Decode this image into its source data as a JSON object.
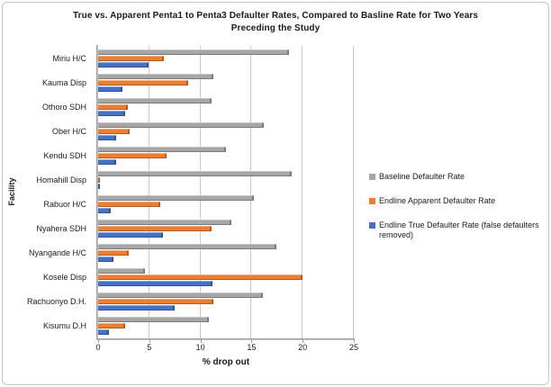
{
  "chart_data": {
    "type": "bar",
    "orientation": "horizontal",
    "title": "True vs. Apparent Penta1 to Penta3 Defaulter Rates, Compared to Basline Rate for Two Years Preceding the Study",
    "title_lines": [
      "True vs. Apparent Penta1 to Penta3 Defaulter Rates, Compared  to Basline  Rate for Two  Years",
      "Preceding  the Study"
    ],
    "categories": [
      "Miriu H/C",
      "Kauma Disp",
      "Othoro SDH",
      "Ober H/C",
      "Kendu SDH",
      "Homahill Disp",
      "Rabuor H/C",
      "Nyahera SDH",
      "Nyangande H/C",
      "Kosele Disp",
      "Rachuonyo D.H.",
      "Kisumu D.H"
    ],
    "series": [
      {
        "name": "Baseline Defaulter Rate",
        "color": "#a6a6a6",
        "values": [
          18.7,
          11.3,
          11.1,
          16.2,
          12.5,
          18.9,
          15.2,
          13.0,
          17.4,
          4.6,
          16.1,
          10.8
        ]
      },
      {
        "name": "Endline Apparent Defaulter Rate",
        "color": "#ed7d31",
        "values": [
          6.4,
          8.8,
          2.9,
          3.1,
          6.7,
          0.2,
          6.1,
          11.1,
          3.0,
          20.0,
          11.3,
          2.6
        ]
      },
      {
        "name": "Endline True Defaulter Rate (false defaulters removed)",
        "color": "#4472c4",
        "values": [
          4.9,
          2.4,
          2.6,
          1.8,
          1.8,
          0.2,
          1.2,
          6.3,
          1.5,
          11.2,
          7.5,
          1.1
        ]
      }
    ],
    "xlabel": "% drop out",
    "ylabel": "Facility",
    "xlim": [
      0,
      25
    ],
    "xticks": [
      0,
      5,
      10,
      15,
      20,
      25
    ],
    "grid": true,
    "legend_position": "right",
    "plot_background": "#ffffff",
    "gridline_color": "#c9c9c9",
    "axis_color": "#8e8e8e"
  }
}
